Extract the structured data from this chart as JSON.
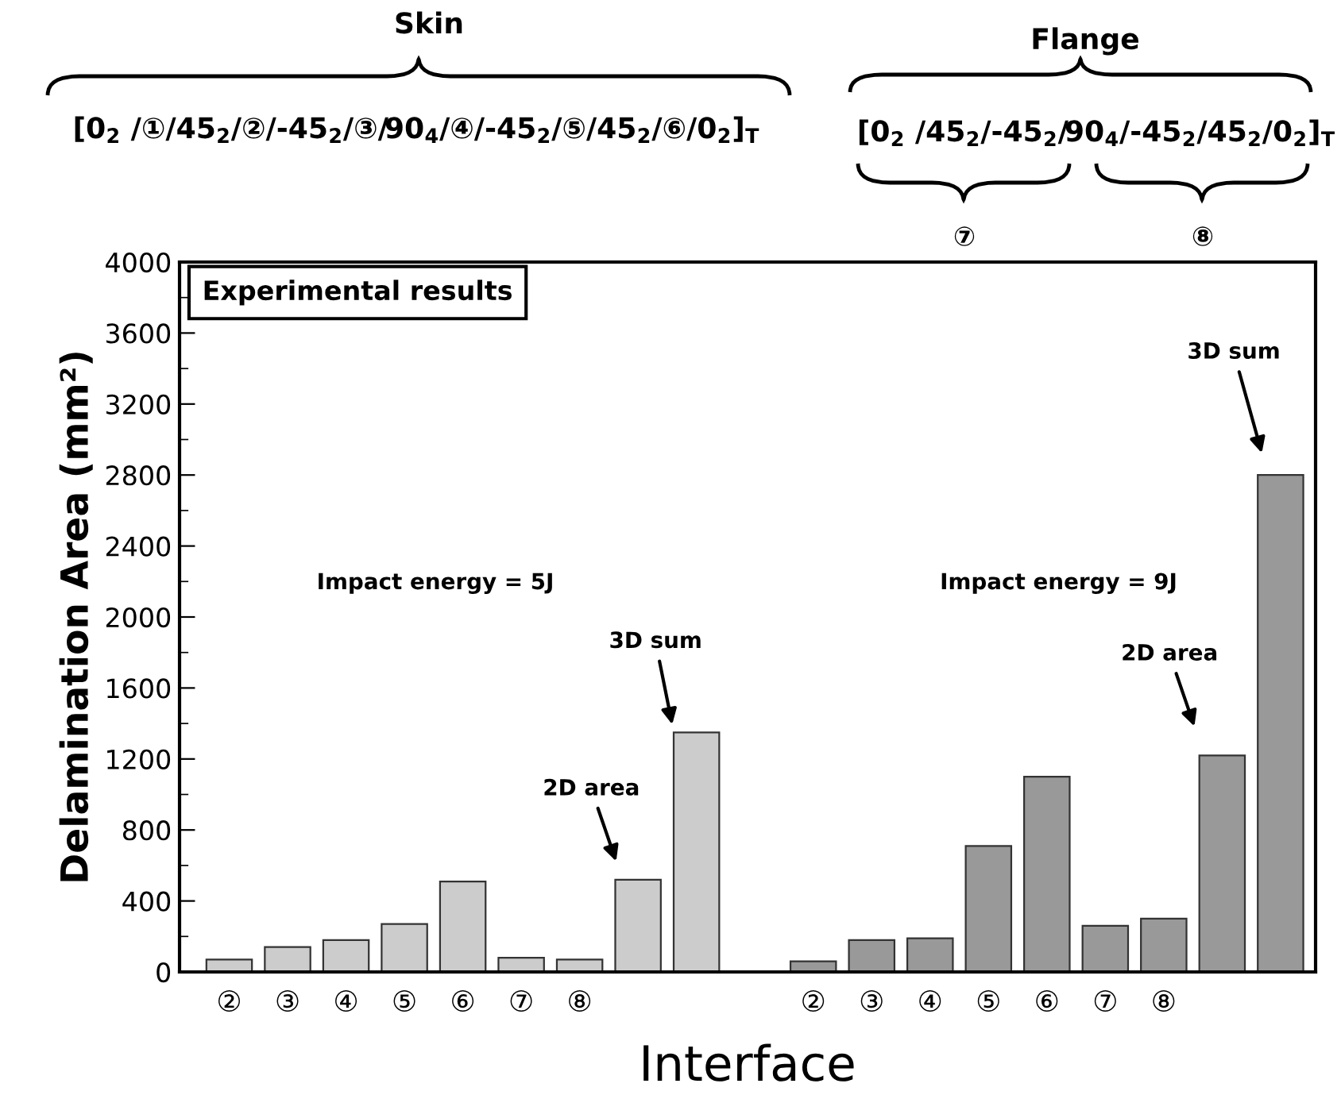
{
  "chart_data": {
    "type": "bar",
    "ylabel": "Delamination Area (mm²)",
    "xlabel": "Interface",
    "categories": [
      "②",
      "③",
      "④",
      "⑤",
      "⑥",
      "⑦",
      "⑧",
      null,
      null,
      null,
      "②",
      "③",
      "④",
      "⑤",
      "⑥",
      "⑦",
      "⑧",
      null,
      null
    ],
    "values": [
      70,
      140,
      180,
      270,
      510,
      80,
      70,
      520,
      1350,
      null,
      60,
      180,
      190,
      710,
      1100,
      260,
      300,
      1220,
      2800
    ],
    "colors": [
      "#cccccc",
      "#cccccc",
      "#cccccc",
      "#cccccc",
      "#cccccc",
      "#cccccc",
      "#cccccc",
      "#cccccc",
      "#cccccc",
      "#cccccc",
      "#999999",
      "#999999",
      "#999999",
      "#999999",
      "#999999",
      "#999999",
      "#999999",
      "#999999",
      "#999999"
    ],
    "ylim": [
      0,
      4000
    ],
    "yticks": [
      0,
      400,
      800,
      1200,
      1600,
      2000,
      2400,
      2800,
      3200,
      3600,
      4000
    ],
    "grid": false,
    "legend": false,
    "annotations": [
      "Experimental results",
      "Impact energy = 5J",
      "Impact energy = 9J",
      "2D area",
      "3D sum",
      "2D area",
      "3D sum",
      "Skin",
      "Flange",
      "[0$_{2}$ /①/45$_{2}$/②/-45$_{2}$/③/90$_{4}$/④/-45$_{2}$/⑤/45$_{2}$/⑥/0$_{2}$]$_{T}$",
      "[0$_{2}$ /45$_{2}$/-45$_{2}$/90$_{4}$/-45$_{2}$/45$_{2}$/0$_{2}$]$_{T}$",
      "⑦",
      "⑧"
    ]
  }
}
